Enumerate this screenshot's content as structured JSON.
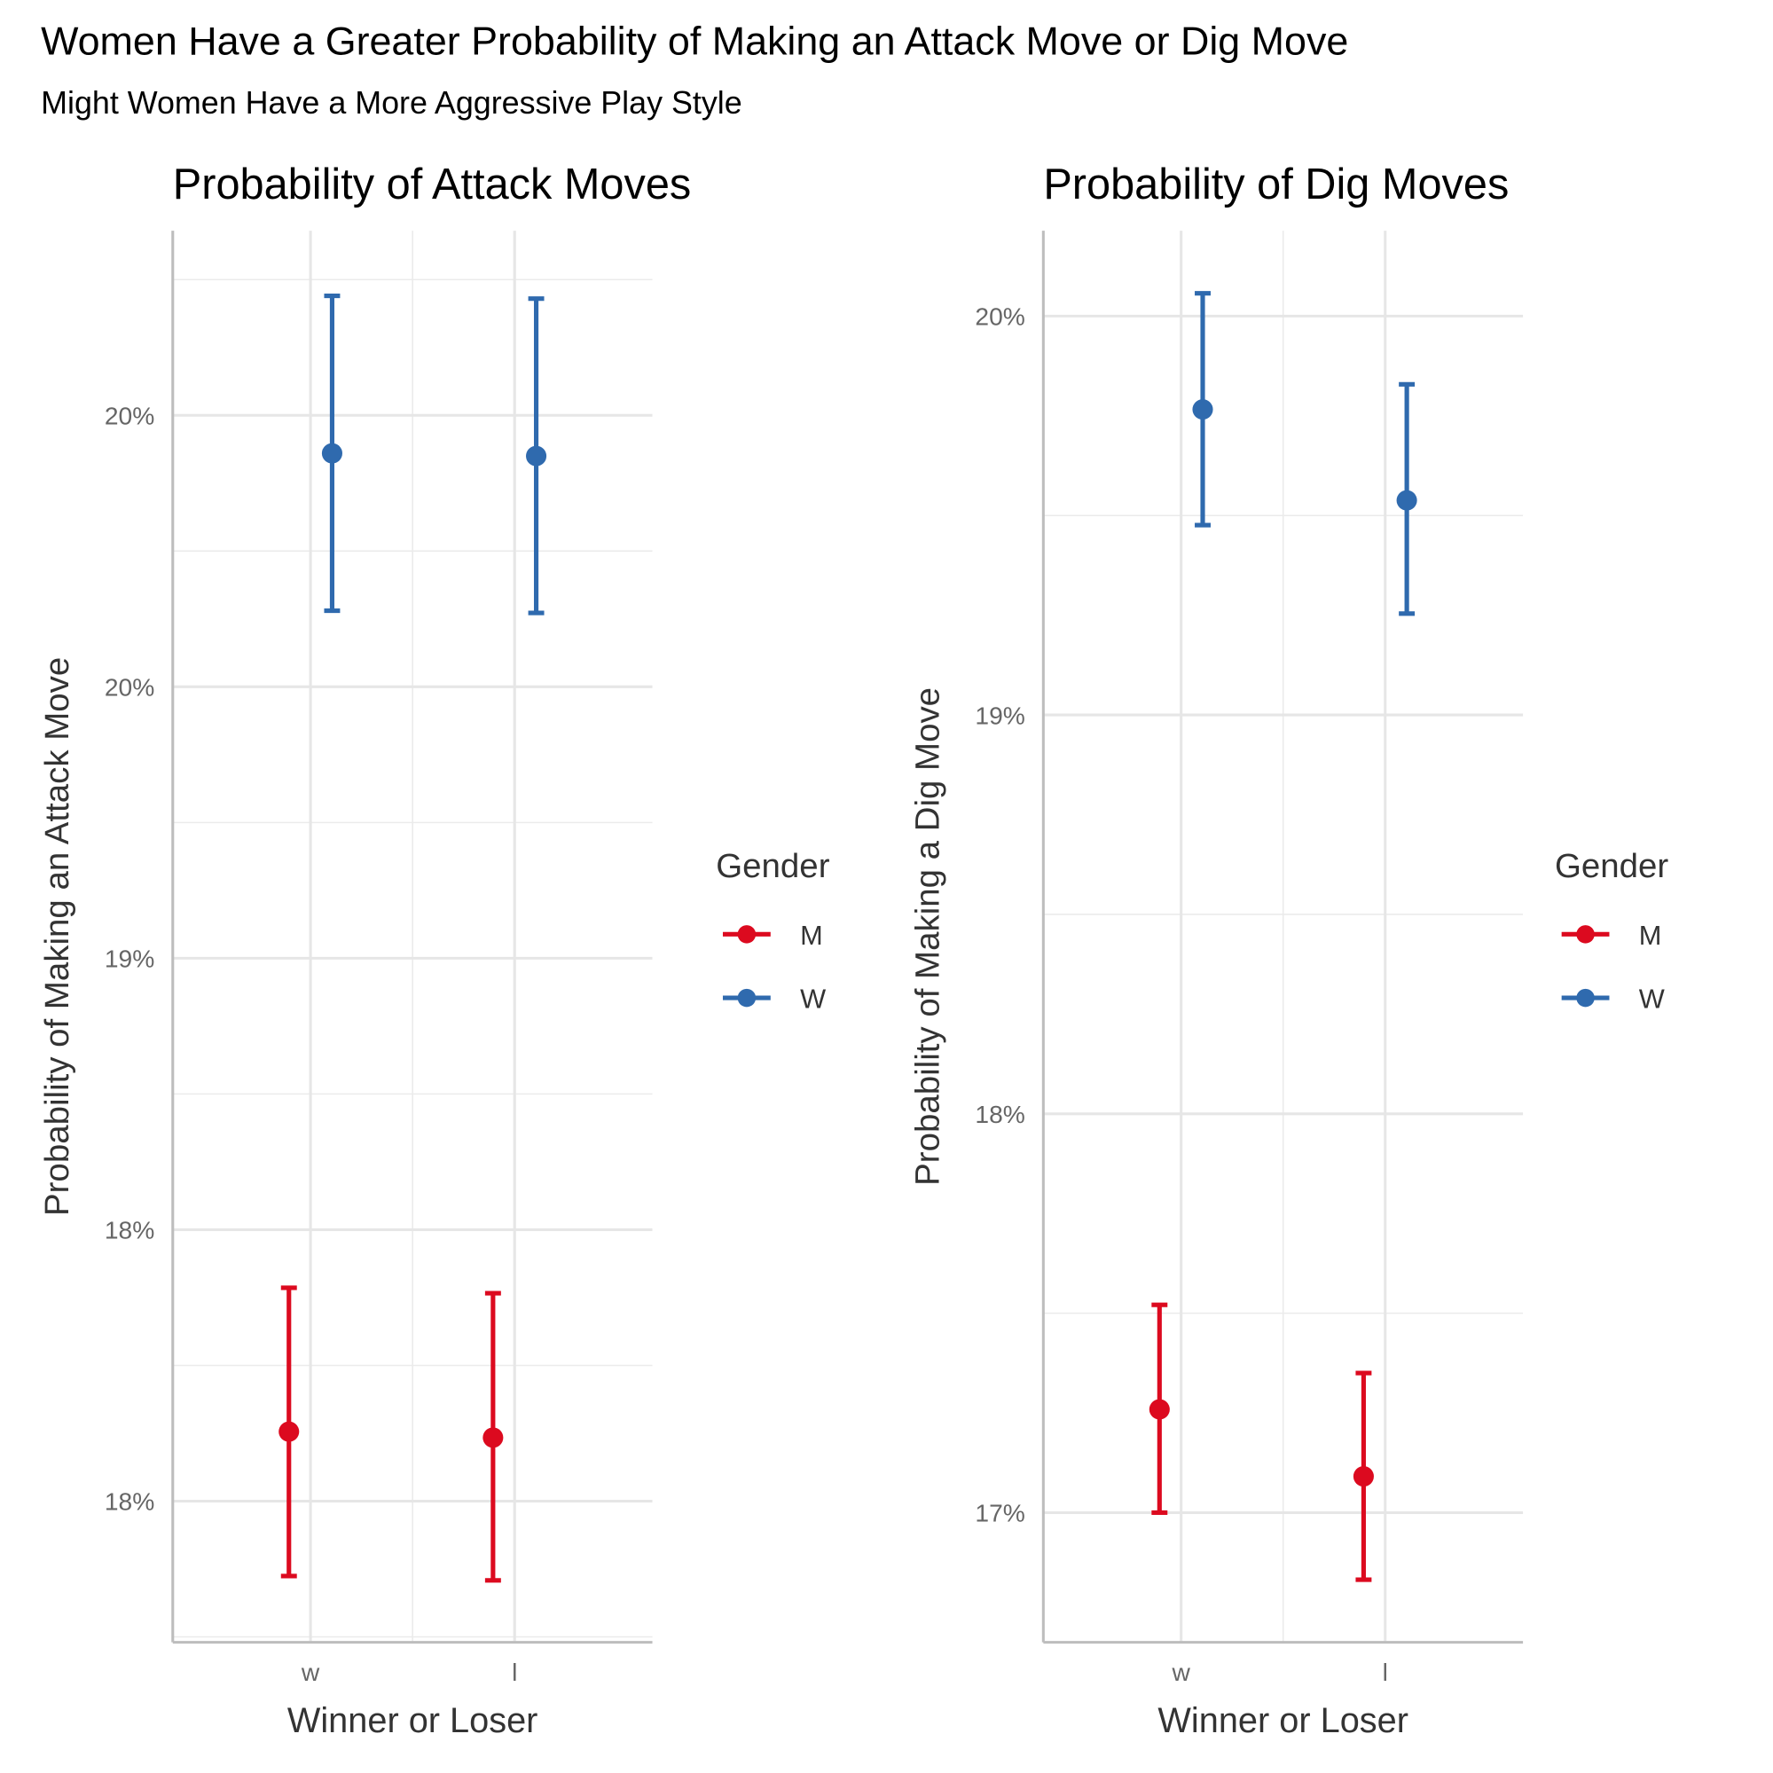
{
  "title": "Women Have a Greater Probability of Making an Attack Move or Dig Move",
  "subtitle": "Might Women Have a More Aggressive Play Style",
  "chart_data": [
    {
      "type": "pointrange",
      "title": "Probability of Attack Moves",
      "x_label": "Winner or Loser",
      "y_label": "Probability of Making an Attack Move",
      "categories": [
        "w",
        "l"
      ],
      "legend_title": "Gender",
      "grid": true,
      "series": [
        {
          "name": "M",
          "color": "#DC0A1F",
          "values": [
            18.128,
            18.117
          ],
          "lower": [
            17.862,
            17.854
          ],
          "upper": [
            18.393,
            18.383
          ]
        },
        {
          "name": "W",
          "color": "#2F6AAE",
          "values": [
            19.93,
            19.925
          ],
          "lower": [
            19.64,
            19.636
          ],
          "upper": [
            20.22,
            20.215
          ]
        }
      ],
      "ylim": [
        17.74,
        20.34
      ],
      "yticks": [
        {
          "value": 18,
          "label": "18%"
        },
        {
          "value": 18.5,
          "label": "18%"
        },
        {
          "value": 19,
          "label": "19%"
        },
        {
          "value": 19.5,
          "label": "20%"
        },
        {
          "value": 20,
          "label": "20%"
        }
      ]
    },
    {
      "type": "pointrange",
      "title": "Probability of Dig Moves",
      "x_label": "Winner or Loser",
      "y_label": "Probability of Making a Dig Move",
      "categories": [
        "w",
        "l"
      ],
      "legend_title": "Gender",
      "grid": true,
      "series": [
        {
          "name": "M",
          "color": "#DC0A1F",
          "values": [
            17.259,
            17.091
          ],
          "lower": [
            17.0,
            16.832
          ],
          "upper": [
            17.521,
            17.35
          ]
        },
        {
          "name": "W",
          "color": "#2F6AAE",
          "values": [
            19.766,
            19.538
          ],
          "lower": [
            19.476,
            19.254
          ],
          "upper": [
            20.057,
            19.829
          ]
        }
      ],
      "ylim": [
        16.675,
        20.214
      ],
      "yticks": [
        {
          "value": 17,
          "label": "17%"
        },
        {
          "value": 18,
          "label": "18%"
        },
        {
          "value": 19,
          "label": "19%"
        },
        {
          "value": 20,
          "label": "20%"
        }
      ]
    }
  ]
}
